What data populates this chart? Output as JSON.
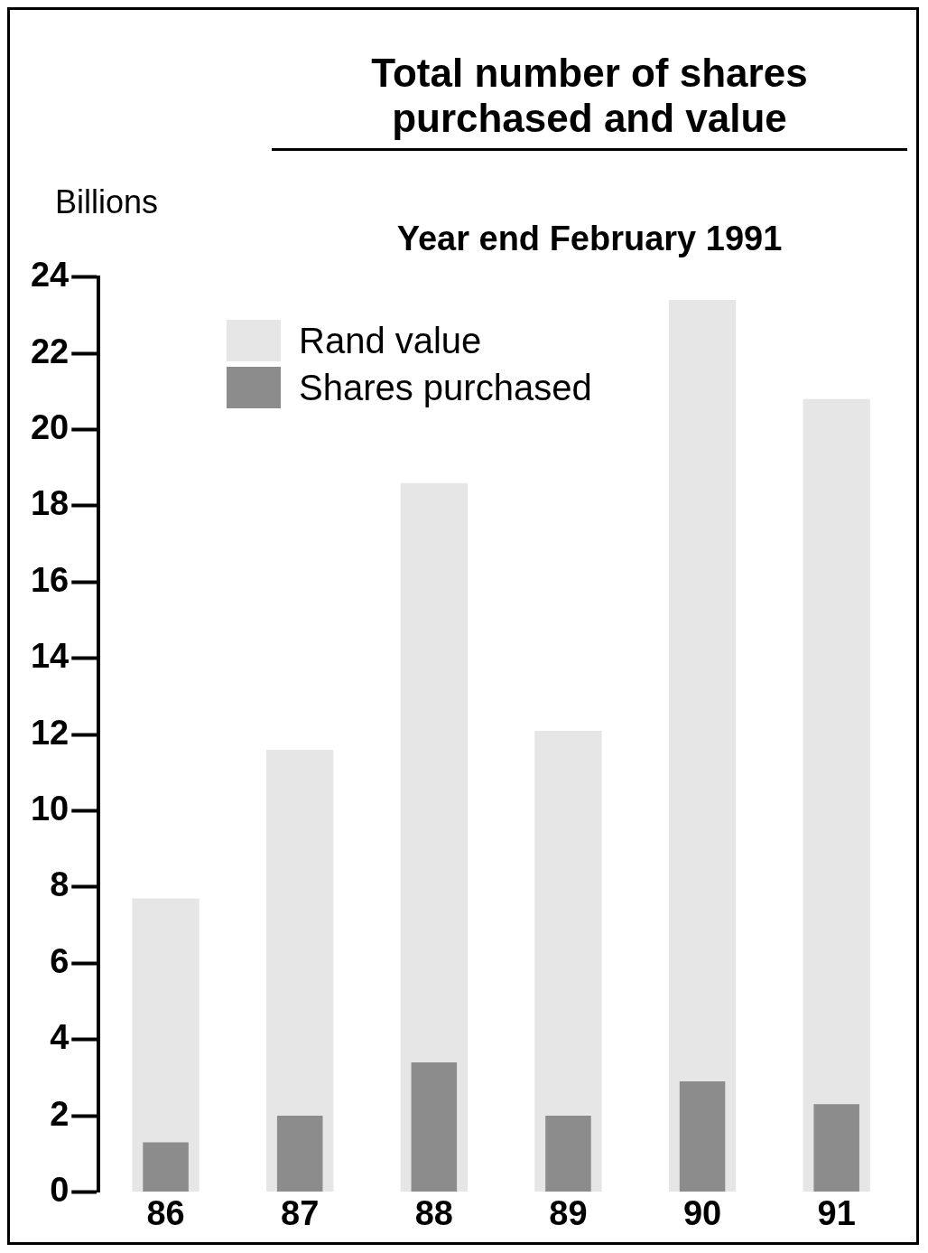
{
  "chart_data": {
    "type": "bar",
    "title": "Total number of shares purchased and value",
    "subtitle": "Year end February 1991",
    "ylabel": "Billions",
    "categories": [
      "86",
      "87",
      "88",
      "89",
      "90",
      "91"
    ],
    "series": [
      {
        "name": "Rand value",
        "color": "#e6e6e6",
        "values": [
          7.7,
          11.6,
          18.6,
          12.1,
          23.4,
          20.8
        ]
      },
      {
        "name": "Shares purchased",
        "color": "#8c8c8c",
        "values": [
          1.3,
          2.0,
          3.4,
          2.0,
          2.9,
          2.3
        ]
      }
    ],
    "ylim": [
      0,
      24
    ],
    "yticks": [
      0,
      2,
      4,
      6,
      8,
      10,
      12,
      14,
      16,
      18,
      20,
      22,
      24
    ],
    "grid": false,
    "legend": "top left"
  }
}
